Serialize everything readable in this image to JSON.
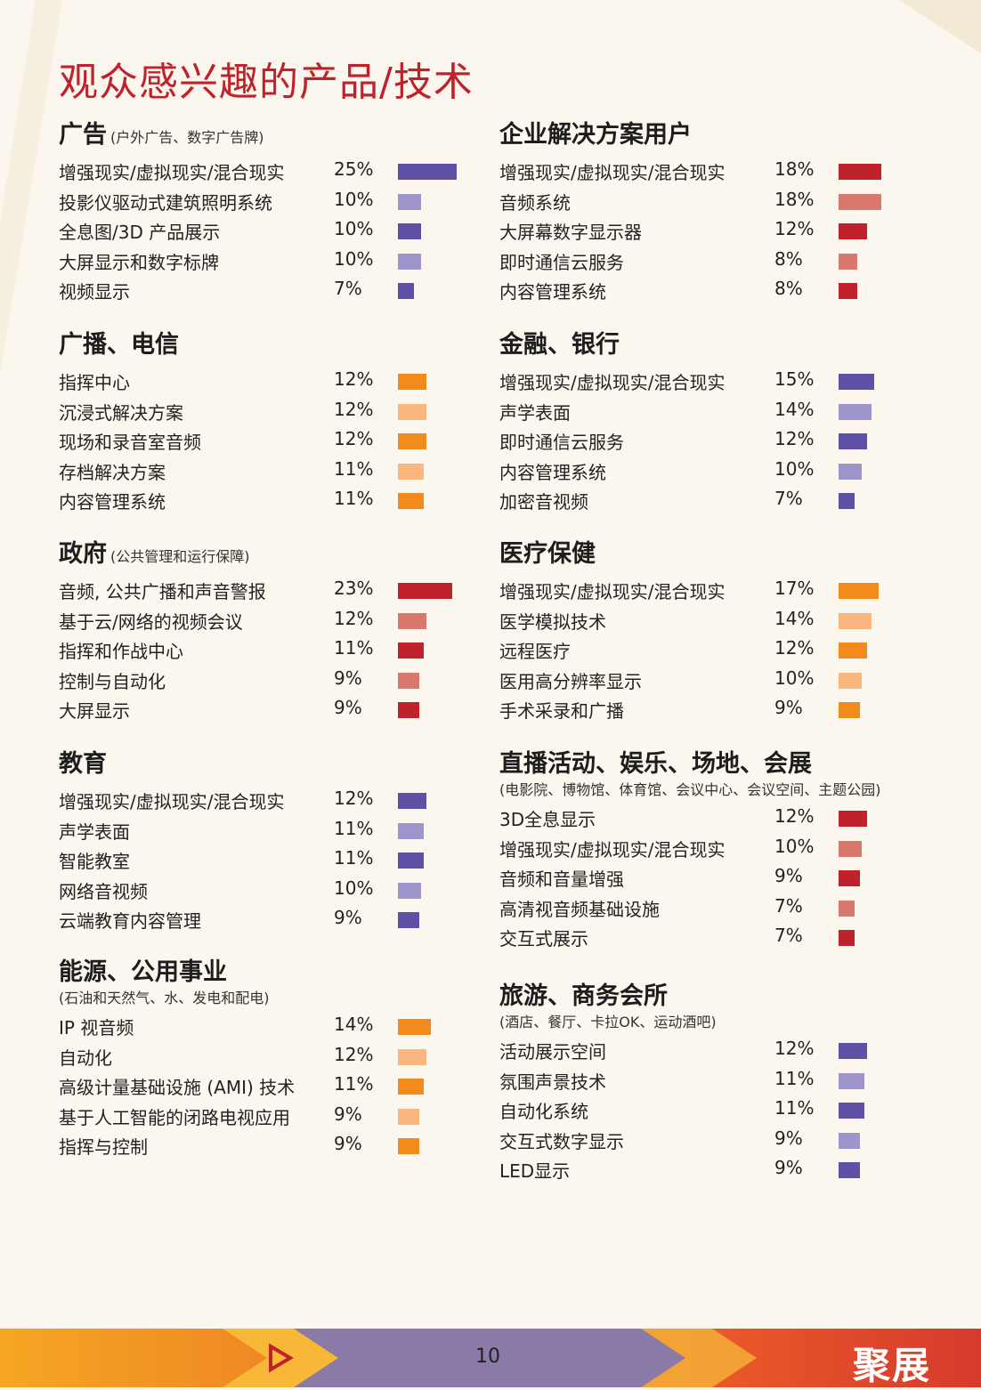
{
  "page": {
    "title": "观众感兴趣的产品/技术",
    "page_number": "10",
    "logo_text": "聚展"
  },
  "colors": {
    "purple_dark": "#5f52a6",
    "purple_light": "#9f95cd",
    "orange_dark": "#f28a1c",
    "orange_light": "#fbb57e",
    "red_dark": "#c0222c",
    "red_light": "#d9786b",
    "title_red": "#c0222c",
    "background": "#fbf7ee"
  },
  "chart_data": [
    {
      "type": "bar",
      "title": "广告",
      "note": "(户外广告、数字广告牌)",
      "subtitle": "",
      "palette": "purple",
      "categories": [
        "增强现实/虚拟现实/混合现实",
        "投影仪驱动式建筑照明系统",
        "全息图/3D 产品展示",
        "大屏显示和数字标牌",
        "视频显示"
      ],
      "labels": [
        "25%",
        "10%",
        "10%",
        "10%",
        "7%"
      ],
      "values": [
        25,
        10,
        10,
        10,
        7
      ],
      "xlim": [
        0,
        25
      ]
    },
    {
      "type": "bar",
      "title": "广播、电信",
      "note": "",
      "subtitle": "",
      "palette": "orange",
      "categories": [
        "指挥中心",
        "沉浸式解决方案",
        "现场和录音室音频",
        "存档解决方案",
        "内容管理系统"
      ],
      "labels": [
        "12%",
        "12%",
        "12%",
        "11%",
        "11%"
      ],
      "values": [
        12,
        12,
        12,
        11,
        11
      ],
      "xlim": [
        0,
        25
      ]
    },
    {
      "type": "bar",
      "title": "政府",
      "note": "(公共管理和运行保障)",
      "subtitle": "",
      "palette": "red",
      "categories": [
        "音频, 公共广播和声音警报",
        "基于云/网络的视频会议",
        "指挥和作战中心",
        "控制与自动化",
        "大屏显示"
      ],
      "labels": [
        "23%",
        "12%",
        "11%",
        "9%",
        "9%"
      ],
      "values": [
        23,
        12,
        11,
        9,
        9
      ],
      "xlim": [
        0,
        25
      ]
    },
    {
      "type": "bar",
      "title": "教育",
      "note": "",
      "subtitle": "",
      "palette": "purple",
      "categories": [
        "增强现实/虚拟现实/混合现实",
        "声学表面",
        "智能教室",
        "网络音视频",
        "云端教育内容管理"
      ],
      "labels": [
        "12%",
        "11%",
        "11%",
        "10%",
        "9%"
      ],
      "values": [
        12,
        11,
        11,
        10,
        9
      ],
      "xlim": [
        0,
        25
      ]
    },
    {
      "type": "bar",
      "title": "能源、公用事业",
      "note": "",
      "subtitle": "(石油和天然气、水、发电和配电)",
      "palette": "orange",
      "categories": [
        "IP 视音频",
        "自动化",
        "高级计量基础设施 (AMI) 技术",
        "基于人工智能的闭路电视应用",
        "指挥与控制"
      ],
      "labels": [
        "14%",
        "12%",
        "11%",
        "9%",
        "9%"
      ],
      "values": [
        14,
        12,
        11,
        9,
        9
      ],
      "xlim": [
        0,
        25
      ]
    },
    {
      "type": "bar",
      "title": "企业解决方案用户",
      "note": "",
      "subtitle": "",
      "palette": "red",
      "categories": [
        "增强现实/虚拟现实/混合现实",
        "音频系统",
        "大屏幕数字显示器",
        "即时通信云服务",
        "内容管理系统"
      ],
      "labels": [
        "18%",
        "18%",
        "12%",
        "8%",
        "8%"
      ],
      "values": [
        18,
        18,
        12,
        8,
        8
      ],
      "xlim": [
        0,
        25
      ]
    },
    {
      "type": "bar",
      "title": "金融、银行",
      "note": "",
      "subtitle": "",
      "palette": "purple",
      "categories": [
        "增强现实/虚拟现实/混合现实",
        "声学表面",
        "即时通信云服务",
        "内容管理系统",
        "加密音视频"
      ],
      "labels": [
        "15%",
        "14%",
        "12%",
        "10%",
        "7%"
      ],
      "values": [
        15,
        14,
        12,
        10,
        7
      ],
      "xlim": [
        0,
        25
      ]
    },
    {
      "type": "bar",
      "title": "医疗保健",
      "note": "",
      "subtitle": "",
      "palette": "orange",
      "categories": [
        "增强现实/虚拟现实/混合现实",
        "医学模拟技术",
        "远程医疗",
        "医用高分辨率显示",
        "手术采录和广播"
      ],
      "labels": [
        "17%",
        "14%",
        "12%",
        "10%",
        "9%"
      ],
      "values": [
        17,
        14,
        12,
        10,
        9
      ],
      "xlim": [
        0,
        25
      ]
    },
    {
      "type": "bar",
      "title": "直播活动、娱乐、场地、会展",
      "note": "",
      "subtitle": "(电影院、博物馆、体育馆、会议中心、会议空间、主题公园)",
      "palette": "red",
      "categories": [
        "3D全息显示",
        "增强现实/虚拟现实/混合现实",
        "音频和音量增强",
        "高清视音频基础设施",
        "交互式展示"
      ],
      "labels": [
        "12%",
        "10%",
        "9%",
        "7%",
        "7%"
      ],
      "values": [
        12,
        10,
        9,
        7,
        7
      ],
      "xlim": [
        0,
        25
      ]
    },
    {
      "type": "bar",
      "title": "旅游、商务会所",
      "note": "",
      "subtitle": "(酒店、餐厅、卡拉OK、运动酒吧)",
      "palette": "purple",
      "categories": [
        "活动展示空间",
        "氛围声景技术",
        "自动化系统",
        "交互式数字显示",
        "LED显示"
      ],
      "labels": [
        "12%",
        "11%",
        "11%",
        "9%",
        "9%"
      ],
      "values": [
        12,
        11,
        11,
        9,
        9
      ],
      "xlim": [
        0,
        25
      ]
    }
  ]
}
